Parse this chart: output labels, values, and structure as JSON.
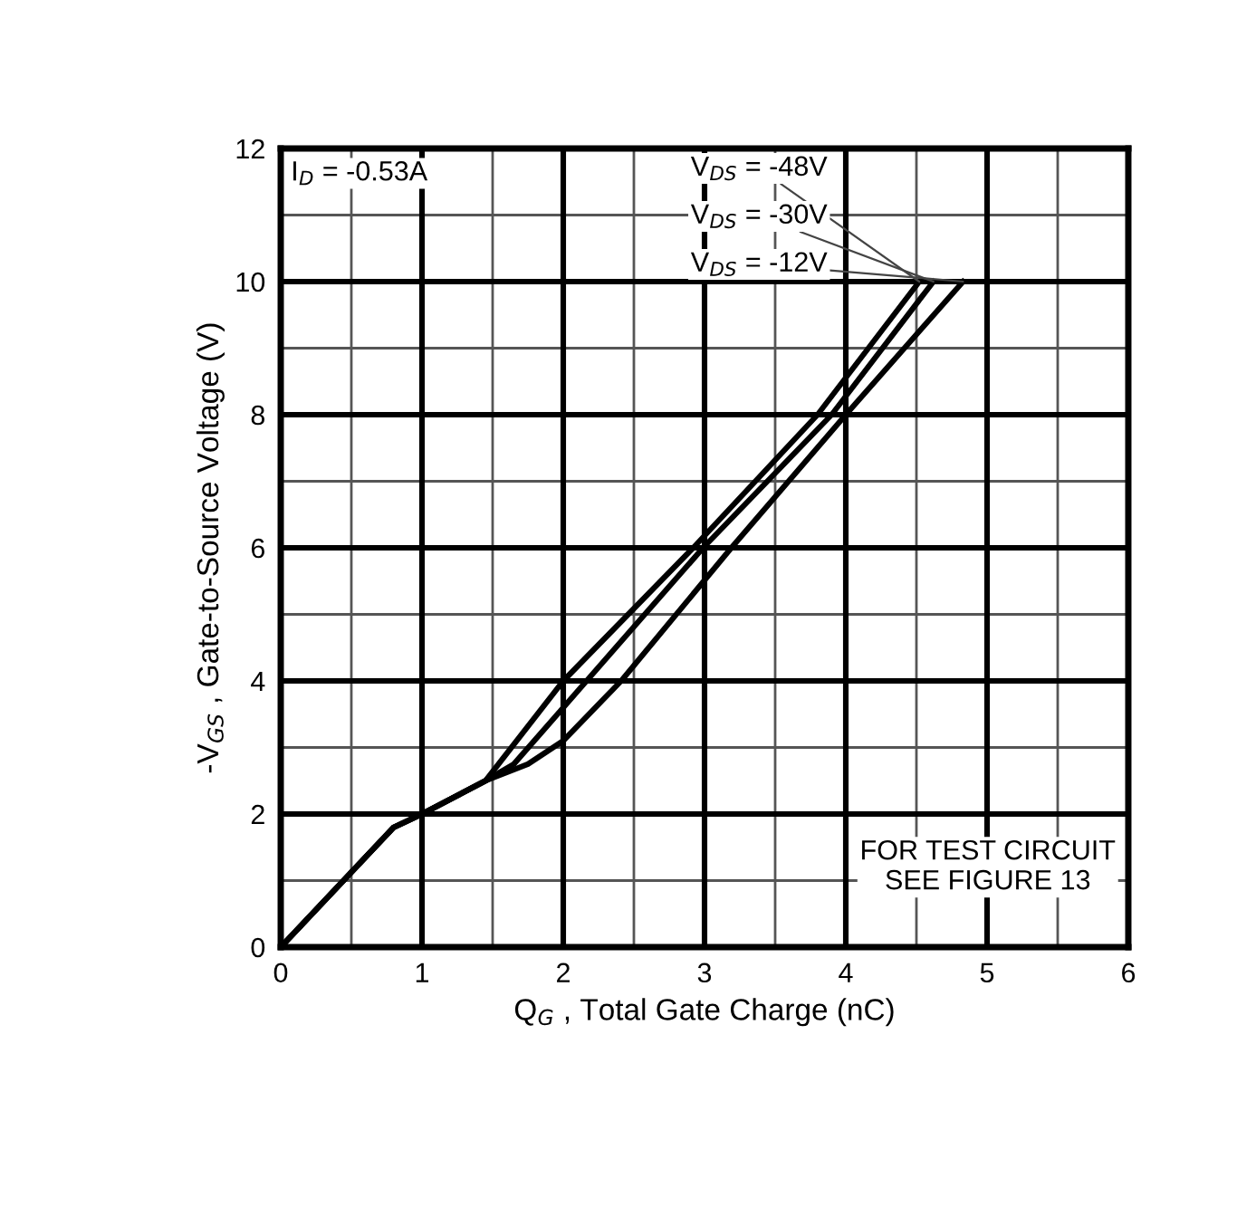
{
  "chart_data": {
    "type": "line",
    "xlabel": "Q$_{G}$ , Total Gate Charge (nC)",
    "ylabel": "-V$_{GS}$ , Gate-to-Source Voltage (V)",
    "xlim": [
      0,
      6
    ],
    "xticks": [
      0,
      1,
      2,
      3,
      4,
      5,
      6
    ],
    "ylim": [
      0,
      12
    ],
    "yticks": [
      0,
      2,
      4,
      6,
      8,
      10,
      12
    ],
    "grid": true,
    "marker": "none",
    "line_style": "solid",
    "series": [
      {
        "name": "V$_{DS}$ = -48V",
        "color": "#000000",
        "x": [
          0,
          0.8,
          1,
          1.45,
          2,
          2.92,
          3.8,
          4.52
        ],
        "values": [
          0,
          1.8,
          2,
          2.5,
          4,
          6,
          8,
          10
        ]
      },
      {
        "name": "V$_{DS}$ = -30V",
        "color": "#000000",
        "x": [
          0,
          0.8,
          1,
          1.45,
          1.65,
          2,
          2.99,
          3.9,
          4.62
        ],
        "values": [
          0,
          1.8,
          2,
          2.5,
          2.75,
          3.6,
          6,
          8,
          10
        ]
      },
      {
        "name": "V$_{DS}$ = -12V",
        "color": "#000000",
        "x": [
          0,
          0.8,
          1,
          1.45,
          1.75,
          2,
          2.41,
          3.19,
          4,
          4.83
        ],
        "values": [
          0,
          1.8,
          2,
          2.5,
          2.75,
          3.1,
          4,
          6,
          8,
          10
        ]
      }
    ],
    "annotations": [
      "I$_{D}$ = -0.53A",
      "FOR TEST CIRCUIT\nSEE FIGURE 13"
    ]
  }
}
